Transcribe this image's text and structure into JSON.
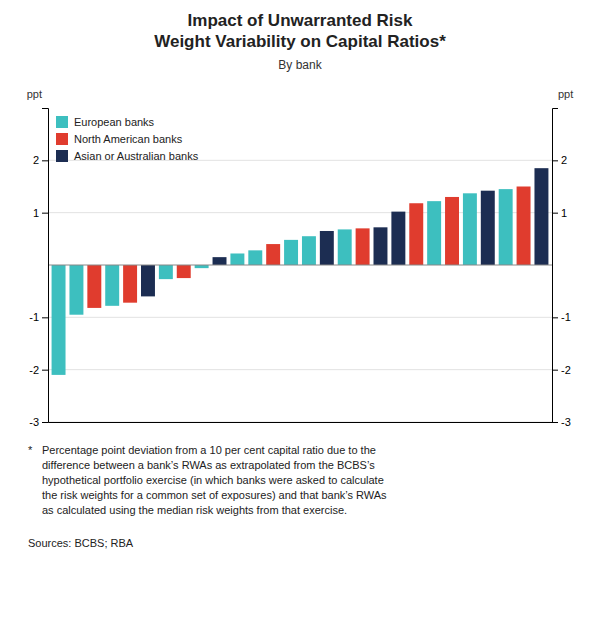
{
  "chart_data": {
    "type": "bar",
    "title": "Impact of Unwarranted Risk\nWeight Variability on Capital Ratios*",
    "subtitle": "By bank",
    "ylabel": "ppt",
    "y2label": "ppt",
    "categories": [
      null,
      null,
      null,
      null,
      null,
      null,
      null,
      null,
      null,
      null,
      null,
      null,
      null,
      null,
      null,
      null,
      null,
      null,
      null,
      null,
      null,
      null,
      null,
      null,
      null,
      null,
      null,
      null
    ],
    "series": [
      {
        "name": "European banks",
        "color": "#3dbfbf",
        "values": [
          -2.1,
          -0.95,
          null,
          -0.78,
          null,
          null,
          -0.27,
          null,
          -0.06,
          null,
          0.22,
          0.28,
          null,
          0.48,
          0.55,
          null,
          0.68,
          null,
          null,
          null,
          null,
          1.22,
          null,
          1.37,
          null,
          1.45,
          null,
          null
        ]
      },
      {
        "name": "North American banks",
        "color": "#e03c2e",
        "values": [
          null,
          null,
          -0.82,
          null,
          -0.72,
          null,
          null,
          -0.25,
          null,
          null,
          null,
          null,
          0.4,
          null,
          null,
          null,
          null,
          0.7,
          null,
          null,
          1.18,
          null,
          1.3,
          null,
          null,
          null,
          1.5,
          null
        ]
      },
      {
        "name": "Asian or Australian banks",
        "color": "#1c2d52",
        "values": [
          null,
          null,
          null,
          null,
          null,
          -0.6,
          null,
          null,
          null,
          0.15,
          null,
          null,
          null,
          null,
          null,
          0.65,
          null,
          null,
          0.72,
          1.02,
          null,
          null,
          null,
          null,
          1.42,
          null,
          null,
          1.85
        ]
      }
    ],
    "stacked": true,
    "ylim": [
      -3,
      3
    ],
    "yticks": [
      -3,
      -2,
      -1,
      1,
      2
    ],
    "y2lim": [
      -3,
      3
    ],
    "y2ticks": [
      -3,
      -2,
      -1,
      1,
      2
    ],
    "grid": true,
    "legend": "upper-left",
    "annotations": [
      "*",
      "Percentage point deviation from a 10 per cent capital ratio due to the\ndifference between a bank’s RWAs as extrapolated from the BCBS’s\nhypothetical portfolio exercise (in which banks were asked to calculate\nthe risk weights for a common set of exposures) and that bank’s RWAs\nas calculated using the median risk weights from that exercise.",
      "Sources: BCBS; RBA"
    ]
  }
}
